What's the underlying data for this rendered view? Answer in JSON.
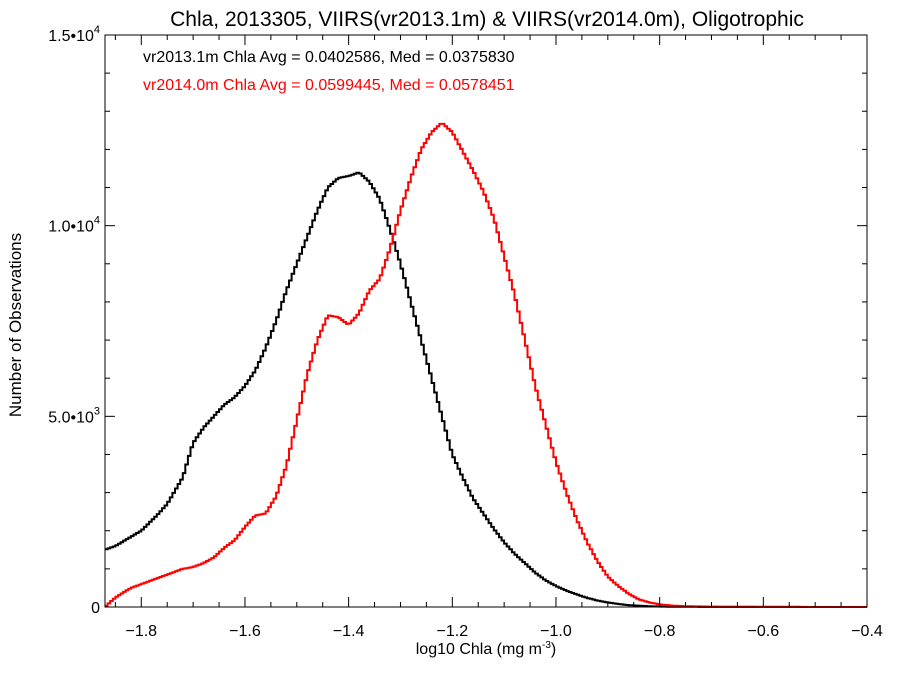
{
  "chart_data": {
    "type": "line",
    "title": "Chla, 2013305, VIIRS(vr2013.1m) & VIIRS(vr2014.0m), Oligotrophic",
    "xlabel": "log10 Chla (mg m",
    "xlabel_sup": "-3",
    "xlabel_tail": ")",
    "ylabel": "Number of Observations",
    "xlim": [
      -1.87,
      -0.4
    ],
    "ylim": [
      0,
      15000
    ],
    "x_ticks": [
      {
        "value": -1.8,
        "label": "−1.8"
      },
      {
        "value": -1.6,
        "label": "−1.6"
      },
      {
        "value": -1.4,
        "label": "−1.4"
      },
      {
        "value": -1.2,
        "label": "−1.2"
      },
      {
        "value": -1.0,
        "label": "−1.0"
      },
      {
        "value": -0.8,
        "label": "−0.8"
      },
      {
        "value": -0.6,
        "label": "−0.6"
      },
      {
        "value": -0.4,
        "label": "−0.4"
      }
    ],
    "y_ticks": [
      {
        "value": 0,
        "mant": "0",
        "exp": ""
      },
      {
        "value": 5000,
        "mant": "5.0•10",
        "exp": "3"
      },
      {
        "value": 10000,
        "mant": "1.0•10",
        "exp": "4"
      },
      {
        "value": 15000,
        "mant": "1.5•10",
        "exp": "4"
      }
    ],
    "annotations": [
      {
        "text": "vr2013.1m Chla Avg = 0.0402586, Med = 0.0375830",
        "color": "#000000"
      },
      {
        "text": "vr2014.0m Chla Avg = 0.0599445, Med = 0.0578451",
        "color": "#ff0000"
      }
    ],
    "series": [
      {
        "color": "#000000",
        "x": [
          -1.87,
          -1.85,
          -1.8,
          -1.77,
          -1.75,
          -1.72,
          -1.7,
          -1.68,
          -1.66,
          -1.64,
          -1.62,
          -1.6,
          -1.58,
          -1.56,
          -1.54,
          -1.52,
          -1.5,
          -1.48,
          -1.46,
          -1.44,
          -1.42,
          -1.4,
          -1.38,
          -1.36,
          -1.34,
          -1.32,
          -1.3,
          -1.28,
          -1.26,
          -1.24,
          -1.22,
          -1.2,
          -1.18,
          -1.16,
          -1.14,
          -1.12,
          -1.1,
          -1.08,
          -1.06,
          -1.04,
          -1.02,
          -1.0,
          -0.98,
          -0.96,
          -0.94,
          -0.92,
          -0.9,
          -0.88,
          -0.86,
          -0.84,
          -0.82,
          -0.8,
          -0.78,
          -0.75,
          -0.7,
          -0.6,
          -0.5,
          -0.4
        ],
        "values": [
          1500,
          1600,
          2000,
          2400,
          2700,
          3400,
          4300,
          4700,
          5000,
          5300,
          5500,
          5800,
          6200,
          6800,
          7500,
          8300,
          9000,
          9700,
          10400,
          11000,
          11250,
          11300,
          11400,
          11150,
          10700,
          9900,
          9000,
          8000,
          7000,
          6000,
          5000,
          4000,
          3400,
          2850,
          2450,
          2050,
          1700,
          1400,
          1150,
          900,
          700,
          550,
          430,
          330,
          240,
          170,
          120,
          80,
          50,
          35,
          20,
          12,
          8,
          5,
          3,
          2,
          1,
          0
        ]
      },
      {
        "color": "#ff0000",
        "x": [
          -1.87,
          -1.85,
          -1.82,
          -1.8,
          -1.78,
          -1.76,
          -1.74,
          -1.72,
          -1.7,
          -1.68,
          -1.66,
          -1.64,
          -1.62,
          -1.6,
          -1.58,
          -1.56,
          -1.54,
          -1.52,
          -1.5,
          -1.48,
          -1.46,
          -1.44,
          -1.42,
          -1.4,
          -1.38,
          -1.36,
          -1.34,
          -1.32,
          -1.3,
          -1.28,
          -1.26,
          -1.24,
          -1.22,
          -1.2,
          -1.18,
          -1.16,
          -1.14,
          -1.12,
          -1.1,
          -1.08,
          -1.06,
          -1.04,
          -1.02,
          -1.0,
          -0.98,
          -0.96,
          -0.94,
          -0.92,
          -0.9,
          -0.88,
          -0.86,
          -0.84,
          -0.82,
          -0.8,
          -0.78,
          -0.75,
          -0.7,
          -0.6,
          -0.5,
          -0.4
        ],
        "values": [
          0,
          250,
          500,
          600,
          700,
          800,
          900,
          1000,
          1050,
          1150,
          1300,
          1550,
          1750,
          2100,
          2400,
          2450,
          2900,
          3700,
          4900,
          6100,
          7000,
          7650,
          7600,
          7400,
          7700,
          8300,
          8600,
          9400,
          10400,
          11250,
          12000,
          12450,
          12700,
          12450,
          11950,
          11450,
          10900,
          10200,
          9200,
          8200,
          7000,
          5800,
          4800,
          3800,
          3000,
          2300,
          1700,
          1200,
          800,
          550,
          350,
          200,
          120,
          70,
          40,
          20,
          10,
          3,
          1,
          0
        ]
      }
    ]
  }
}
